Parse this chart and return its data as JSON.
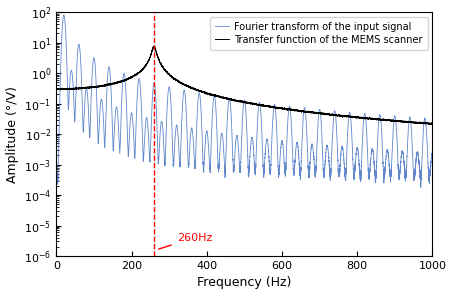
{
  "title": "",
  "xlabel": "Frequency (Hz)",
  "ylabel": "Amplitude (°/V)",
  "xlim": [
    0,
    1000
  ],
  "ylim_log": [
    -6,
    2
  ],
  "resonance_freq": 260,
  "triangular_fund_freq": 20,
  "blue_color": "#4472C4",
  "black_color": "#000000",
  "red_color": "#FF0000",
  "annotation_text": "260Hz",
  "legend1": "Fourier transform of the input signal",
  "legend2": "Transfer function of the MEMS scanner",
  "noise_floor_blue": 0.0001,
  "tf_flat_level": 0.3,
  "tf_peak": 4.0,
  "tf_resonance_Q": 25
}
